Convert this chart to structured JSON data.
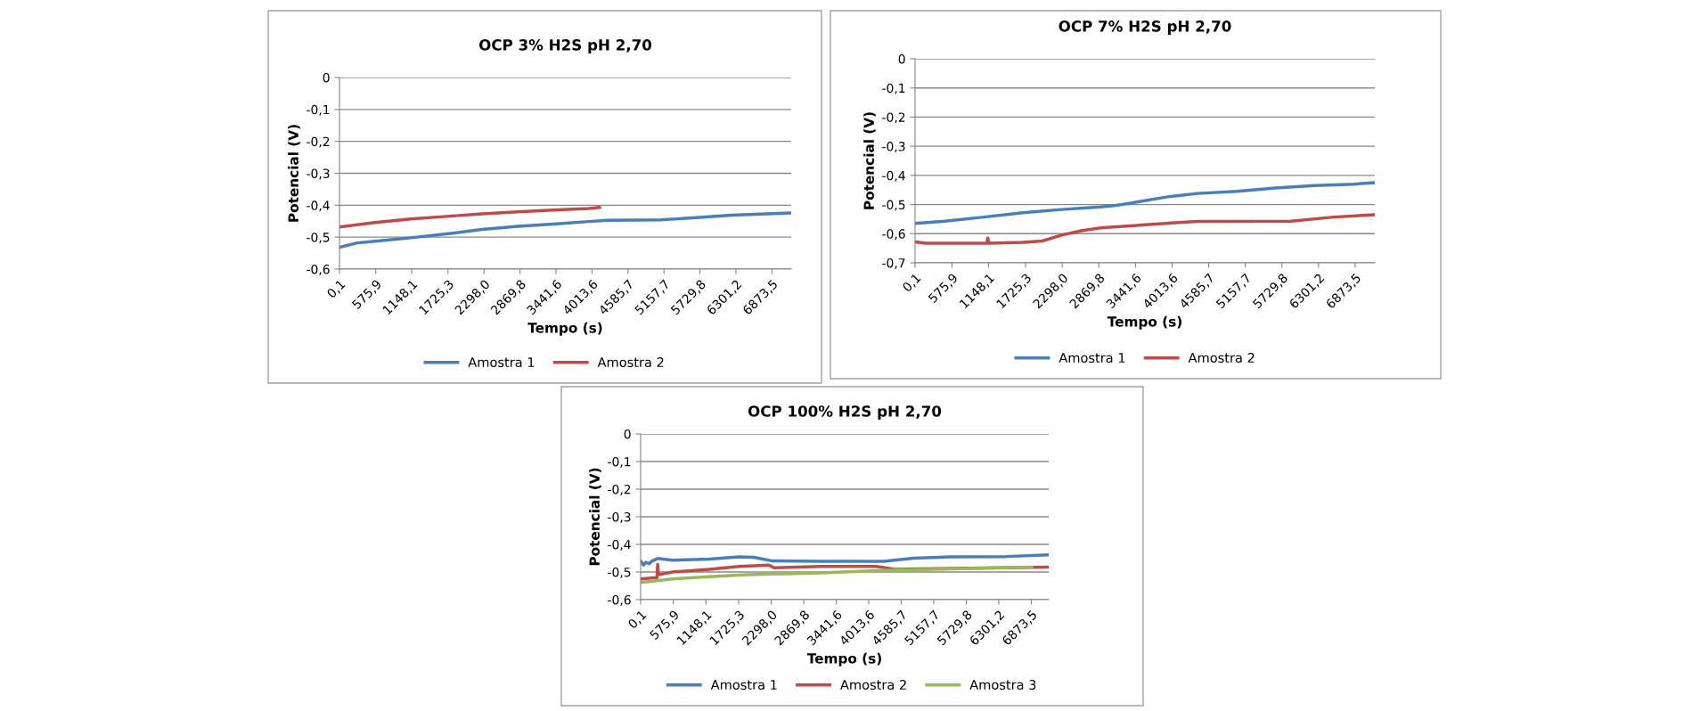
{
  "chart_data": [
    {
      "type": "line",
      "title": "OCP 3% H2S pH 2,70",
      "xlabel": "Tempo (s)",
      "ylabel": "Potencial (V)",
      "grid": "y",
      "legend": "bottom",
      "xlim": [
        0.1,
        7180
      ],
      "ylim": [
        -0.6,
        0
      ],
      "xticks": [
        {
          "value": 0.1,
          "label": "0,1"
        },
        {
          "value": 575.9,
          "label": "575,9"
        },
        {
          "value": 1148.1,
          "label": "1148,1"
        },
        {
          "value": 1725.3,
          "label": "1725,3"
        },
        {
          "value": 2298.0,
          "label": "2298,0"
        },
        {
          "value": 2869.8,
          "label": "2869,8"
        },
        {
          "value": 3441.6,
          "label": "3441,6"
        },
        {
          "value": 4013.6,
          "label": "4013,6"
        },
        {
          "value": 4585.7,
          "label": "4585,7"
        },
        {
          "value": 5157.7,
          "label": "5157,7"
        },
        {
          "value": 5729.8,
          "label": "5729,8"
        },
        {
          "value": 6301.2,
          "label": "6301,2"
        },
        {
          "value": 6873.5,
          "label": "6873,5"
        }
      ],
      "yticks": [
        0,
        {
          "value": -0.1,
          "label": "-0,1"
        },
        {
          "value": -0.2,
          "label": "-0,2"
        },
        {
          "value": -0.3,
          "label": "-0,3"
        },
        {
          "value": -0.4,
          "label": "-0,4"
        },
        {
          "value": -0.5,
          "label": "-0,5"
        },
        {
          "value": -0.6,
          "label": "-0,6"
        }
      ],
      "series": [
        {
          "name": "Amostra 1",
          "color": "#4a7ebb",
          "x": [
            0.1,
            283,
            567,
            1134,
            1701,
            2267,
            2834,
            3401,
            3967,
            4250,
            5100,
            5667,
            6234,
            6800,
            7180
          ],
          "values": [
            -0.532,
            -0.518,
            -0.513,
            -0.502,
            -0.49,
            -0.476,
            -0.466,
            -0.459,
            -0.451,
            -0.447,
            -0.446,
            -0.439,
            -0.431,
            -0.427,
            -0.424
          ]
        },
        {
          "name": "Amostra 2",
          "color": "#be4b48",
          "x": [
            0.1,
            567,
            1134,
            1701,
            2267,
            2834,
            3401,
            3967,
            4137
          ],
          "values": [
            -0.468,
            -0.454,
            -0.443,
            -0.435,
            -0.427,
            -0.421,
            -0.415,
            -0.41,
            -0.407
          ]
        }
      ]
    },
    {
      "type": "line",
      "title": "OCP 7% H2S pH 2,70",
      "xlabel": "Tempo (s)",
      "ylabel": "Potencial (V)",
      "grid": "y",
      "legend": "bottom",
      "xlim": [
        0.1,
        7180
      ],
      "ylim": [
        -0.7,
        0
      ],
      "xticks": [
        {
          "value": 0.1,
          "label": "0,1"
        },
        {
          "value": 575.9,
          "label": "575,9"
        },
        {
          "value": 1148.1,
          "label": "1148,1"
        },
        {
          "value": 1725.3,
          "label": "1725,3"
        },
        {
          "value": 2298.0,
          "label": "2298,0"
        },
        {
          "value": 2869.8,
          "label": "2869,8"
        },
        {
          "value": 3441.6,
          "label": "3441,6"
        },
        {
          "value": 4013.6,
          "label": "4013,6"
        },
        {
          "value": 4585.7,
          "label": "4585,7"
        },
        {
          "value": 5157.7,
          "label": "5157,7"
        },
        {
          "value": 5729.8,
          "label": "5729,8"
        },
        {
          "value": 6301.2,
          "label": "6301,2"
        },
        {
          "value": 6873.5,
          "label": "6873,5"
        }
      ],
      "yticks": [
        0,
        {
          "value": -0.1,
          "label": "-0,1"
        },
        {
          "value": -0.2,
          "label": "-0,2"
        },
        {
          "value": -0.3,
          "label": "-0,3"
        },
        {
          "value": -0.4,
          "label": "-0,4"
        },
        {
          "value": -0.5,
          "label": "-0,5"
        },
        {
          "value": -0.6,
          "label": "-0,6"
        },
        {
          "value": -0.7,
          "label": "-0,7"
        }
      ],
      "series": [
        {
          "name": "Amostra 1",
          "color": "#4a7ebb",
          "x": [
            0.1,
            468,
            1075,
            1682,
            2289,
            2897,
            3140,
            3504,
            3990,
            4415,
            5022,
            5629,
            6236,
            6843,
            7180
          ],
          "values": [
            -0.565,
            -0.557,
            -0.543,
            -0.528,
            -0.517,
            -0.508,
            -0.503,
            -0.49,
            -0.472,
            -0.462,
            -0.455,
            -0.443,
            -0.435,
            -0.43,
            -0.425
          ]
        },
        {
          "name": "Amostra 2",
          "color": "#be4b48",
          "x": [
            0.1,
            164,
            1075,
            1120,
            1136,
            1152,
            1682,
            1986,
            2289,
            2593,
            2897,
            3504,
            4111,
            4415,
            5872,
            6540,
            7180
          ],
          "values": [
            -0.628,
            -0.633,
            -0.633,
            -0.633,
            -0.615,
            -0.633,
            -0.63,
            -0.625,
            -0.605,
            -0.59,
            -0.58,
            -0.571,
            -0.562,
            -0.558,
            -0.557,
            -0.543,
            -0.535
          ]
        }
      ]
    },
    {
      "type": "line",
      "title": "OCP 100% H2S pH 2,70",
      "xlabel": "Tempo (s)",
      "ylabel": "Potencial (V)",
      "grid": "y",
      "legend": "bottom",
      "xlim": [
        0.1,
        7180
      ],
      "ylim": [
        -0.6,
        0
      ],
      "xticks": [
        {
          "value": 0.1,
          "label": "0,1"
        },
        {
          "value": 575.9,
          "label": "575,9"
        },
        {
          "value": 1148.1,
          "label": "1148,1"
        },
        {
          "value": 1725.3,
          "label": "1725,3"
        },
        {
          "value": 2298.0,
          "label": "2298,0"
        },
        {
          "value": 2869.8,
          "label": "2869,8"
        },
        {
          "value": 3441.6,
          "label": "3441,6"
        },
        {
          "value": 4013.6,
          "label": "4013,6"
        },
        {
          "value": 4585.7,
          "label": "4585,7"
        },
        {
          "value": 5157.7,
          "label": "5157,7"
        },
        {
          "value": 5729.8,
          "label": "5729,8"
        },
        {
          "value": 6301.2,
          "label": "6301,2"
        },
        {
          "value": 6873.5,
          "label": "6873,5"
        }
      ],
      "yticks": [
        0,
        {
          "value": -0.1,
          "label": "-0,1"
        },
        {
          "value": -0.2,
          "label": "-0,2"
        },
        {
          "value": -0.3,
          "label": "-0,3"
        },
        {
          "value": -0.4,
          "label": "-0,4"
        },
        {
          "value": -0.5,
          "label": "-0,5"
        },
        {
          "value": -0.6,
          "label": "-0,6"
        }
      ],
      "series": [
        {
          "name": "Amostra 1",
          "color": "#4a7ebb",
          "x": [
            0.1,
            52,
            91,
            150,
            202,
            300,
            561,
            1213,
            1734,
            1995,
            2321,
            3169,
            4278,
            4800,
            5452,
            6430,
            7180
          ],
          "values": [
            -0.46,
            -0.475,
            -0.465,
            -0.47,
            -0.46,
            -0.451,
            -0.457,
            -0.453,
            -0.445,
            -0.447,
            -0.46,
            -0.461,
            -0.461,
            -0.45,
            -0.445,
            -0.444,
            -0.438
          ]
        },
        {
          "name": "Amostra 2",
          "color": "#be4b48",
          "x": [
            0.1,
            287,
            300,
            313,
            561,
            1213,
            1734,
            2256,
            2354,
            3169,
            4147,
            4474,
            7180
          ],
          "values": [
            -0.525,
            -0.52,
            -0.472,
            -0.51,
            -0.5,
            -0.49,
            -0.48,
            -0.475,
            -0.485,
            -0.48,
            -0.48,
            -0.49,
            -0.482
          ]
        },
        {
          "name": "Amostra 3",
          "color": "#98b954",
          "x": [
            0.1,
            561,
            1213,
            1865,
            3169,
            4147,
            5126,
            6886
          ],
          "values": [
            -0.538,
            -0.525,
            -0.517,
            -0.51,
            -0.503,
            -0.495,
            -0.49,
            -0.482
          ]
        }
      ]
    }
  ]
}
